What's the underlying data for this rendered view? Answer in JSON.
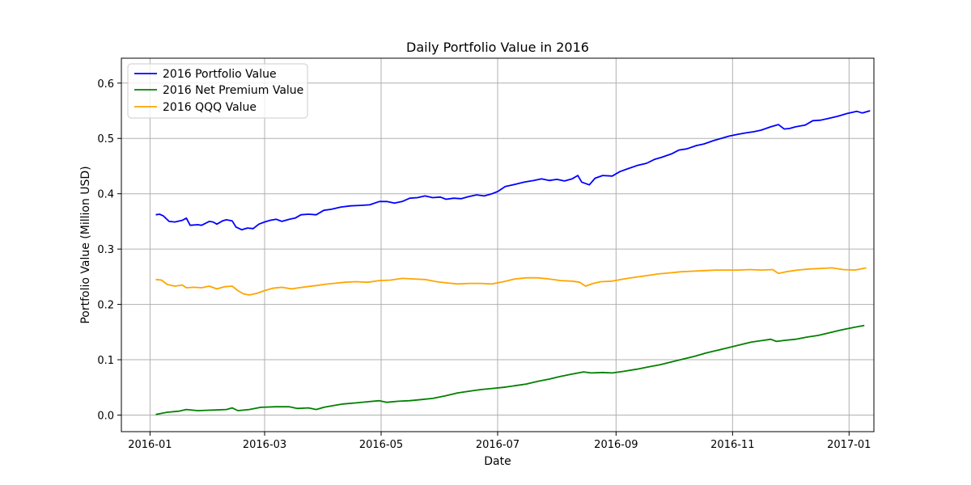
{
  "chart_data": {
    "type": "line",
    "title": "Daily Portfolio Value in 2016",
    "xlabel": "Date",
    "ylabel": "Portfolio Value (Million USD)",
    "xlim": [
      "2015-12-17",
      "2017-01-14"
    ],
    "ylim": [
      -0.03,
      0.645
    ],
    "x_ticks": [
      "2016-01",
      "2016-03",
      "2016-05",
      "2016-07",
      "2016-09",
      "2016-11",
      "2017-01"
    ],
    "y_ticks": [
      "0.0",
      "0.1",
      "0.2",
      "0.3",
      "0.4",
      "0.5",
      "0.6"
    ],
    "grid": true,
    "legend_position": "top-left",
    "series": [
      {
        "name": "2016 Portfolio Value",
        "color": "#0000ff",
        "points": [
          [
            "2016-01-04",
            0.362
          ],
          [
            "2016-01-06",
            0.363
          ],
          [
            "2016-01-08",
            0.36
          ],
          [
            "2016-01-11",
            0.35
          ],
          [
            "2016-01-14",
            0.349
          ],
          [
            "2016-01-18",
            0.352
          ],
          [
            "2016-01-20",
            0.356
          ],
          [
            "2016-01-22",
            0.343
          ],
          [
            "2016-01-26",
            0.344
          ],
          [
            "2016-01-28",
            0.343
          ],
          [
            "2016-02-01",
            0.35
          ],
          [
            "2016-02-03",
            0.349
          ],
          [
            "2016-02-05",
            0.345
          ],
          [
            "2016-02-08",
            0.351
          ],
          [
            "2016-02-10",
            0.353
          ],
          [
            "2016-02-13",
            0.351
          ],
          [
            "2016-02-15",
            0.34
          ],
          [
            "2016-02-18",
            0.335
          ],
          [
            "2016-02-21",
            0.338
          ],
          [
            "2016-02-24",
            0.337
          ],
          [
            "2016-02-27",
            0.345
          ],
          [
            "2016-03-01",
            0.349
          ],
          [
            "2016-03-04",
            0.352
          ],
          [
            "2016-03-07",
            0.354
          ],
          [
            "2016-03-10",
            0.35
          ],
          [
            "2016-03-14",
            0.354
          ],
          [
            "2016-03-17",
            0.356
          ],
          [
            "2016-03-20",
            0.362
          ],
          [
            "2016-03-24",
            0.363
          ],
          [
            "2016-03-28",
            0.362
          ],
          [
            "2016-04-01",
            0.37
          ],
          [
            "2016-04-05",
            0.372
          ],
          [
            "2016-04-10",
            0.376
          ],
          [
            "2016-04-15",
            0.378
          ],
          [
            "2016-04-20",
            0.379
          ],
          [
            "2016-04-25",
            0.38
          ],
          [
            "2016-04-30",
            0.386
          ],
          [
            "2016-05-04",
            0.386
          ],
          [
            "2016-05-08",
            0.383
          ],
          [
            "2016-05-12",
            0.386
          ],
          [
            "2016-05-16",
            0.392
          ],
          [
            "2016-05-20",
            0.393
          ],
          [
            "2016-05-24",
            0.396
          ],
          [
            "2016-05-28",
            0.393
          ],
          [
            "2016-06-01",
            0.394
          ],
          [
            "2016-06-04",
            0.39
          ],
          [
            "2016-06-08",
            0.392
          ],
          [
            "2016-06-12",
            0.391
          ],
          [
            "2016-06-16",
            0.395
          ],
          [
            "2016-06-20",
            0.398
          ],
          [
            "2016-06-24",
            0.396
          ],
          [
            "2016-06-28",
            0.4
          ],
          [
            "2016-07-01",
            0.404
          ],
          [
            "2016-07-05",
            0.413
          ],
          [
            "2016-07-10",
            0.417
          ],
          [
            "2016-07-15",
            0.421
          ],
          [
            "2016-07-20",
            0.424
          ],
          [
            "2016-07-24",
            0.427
          ],
          [
            "2016-07-28",
            0.424
          ],
          [
            "2016-08-01",
            0.426
          ],
          [
            "2016-08-05",
            0.423
          ],
          [
            "2016-08-09",
            0.427
          ],
          [
            "2016-08-12",
            0.433
          ],
          [
            "2016-08-14",
            0.421
          ],
          [
            "2016-08-18",
            0.416
          ],
          [
            "2016-08-21",
            0.428
          ],
          [
            "2016-08-25",
            0.433
          ],
          [
            "2016-08-30",
            0.432
          ],
          [
            "2016-09-03",
            0.44
          ],
          [
            "2016-09-07",
            0.445
          ],
          [
            "2016-09-12",
            0.451
          ],
          [
            "2016-09-17",
            0.455
          ],
          [
            "2016-09-21",
            0.462
          ],
          [
            "2016-09-25",
            0.466
          ],
          [
            "2016-09-30",
            0.472
          ],
          [
            "2016-10-04",
            0.479
          ],
          [
            "2016-10-08",
            0.481
          ],
          [
            "2016-10-13",
            0.487
          ],
          [
            "2016-10-17",
            0.49
          ],
          [
            "2016-10-22",
            0.496
          ],
          [
            "2016-10-26",
            0.5
          ],
          [
            "2016-10-30",
            0.504
          ],
          [
            "2016-11-03",
            0.507
          ],
          [
            "2016-11-08",
            0.51
          ],
          [
            "2016-11-12",
            0.512
          ],
          [
            "2016-11-16",
            0.515
          ],
          [
            "2016-11-21",
            0.521
          ],
          [
            "2016-11-25",
            0.525
          ],
          [
            "2016-11-28",
            0.517
          ],
          [
            "2016-12-01",
            0.518
          ],
          [
            "2016-12-04",
            0.521
          ],
          [
            "2016-12-09",
            0.524
          ],
          [
            "2016-12-13",
            0.532
          ],
          [
            "2016-12-17",
            0.533
          ],
          [
            "2016-12-21",
            0.536
          ],
          [
            "2016-12-26",
            0.54
          ],
          [
            "2016-12-31",
            0.545
          ],
          [
            "2017-01-05",
            0.549
          ],
          [
            "2017-01-08",
            0.546
          ],
          [
            "2017-01-12",
            0.55
          ]
        ]
      },
      {
        "name": "2016 Net Premium Value",
        "color": "#008000",
        "points": [
          [
            "2016-01-04",
            0.001
          ],
          [
            "2016-01-10",
            0.005
          ],
          [
            "2016-01-16",
            0.007
          ],
          [
            "2016-01-20",
            0.01
          ],
          [
            "2016-01-26",
            0.008
          ],
          [
            "2016-02-03",
            0.009
          ],
          [
            "2016-02-10",
            0.01
          ],
          [
            "2016-02-13",
            0.013
          ],
          [
            "2016-02-16",
            0.008
          ],
          [
            "2016-02-22",
            0.01
          ],
          [
            "2016-02-28",
            0.014
          ],
          [
            "2016-03-07",
            0.015
          ],
          [
            "2016-03-14",
            0.015
          ],
          [
            "2016-03-18",
            0.012
          ],
          [
            "2016-03-24",
            0.013
          ],
          [
            "2016-03-28",
            0.01
          ],
          [
            "2016-04-01",
            0.014
          ],
          [
            "2016-04-06",
            0.017
          ],
          [
            "2016-04-11",
            0.02
          ],
          [
            "2016-04-18",
            0.022
          ],
          [
            "2016-04-24",
            0.024
          ],
          [
            "2016-04-30",
            0.026
          ],
          [
            "2016-05-04",
            0.023
          ],
          [
            "2016-05-10",
            0.025
          ],
          [
            "2016-05-16",
            0.026
          ],
          [
            "2016-05-22",
            0.028
          ],
          [
            "2016-05-28",
            0.03
          ],
          [
            "2016-06-04",
            0.035
          ],
          [
            "2016-06-10",
            0.04
          ],
          [
            "2016-06-16",
            0.043
          ],
          [
            "2016-06-22",
            0.046
          ],
          [
            "2016-06-28",
            0.048
          ],
          [
            "2016-07-04",
            0.05
          ],
          [
            "2016-07-10",
            0.053
          ],
          [
            "2016-07-16",
            0.056
          ],
          [
            "2016-07-22",
            0.061
          ],
          [
            "2016-07-28",
            0.065
          ],
          [
            "2016-08-03",
            0.07
          ],
          [
            "2016-08-09",
            0.074
          ],
          [
            "2016-08-15",
            0.078
          ],
          [
            "2016-08-19",
            0.076
          ],
          [
            "2016-08-25",
            0.077
          ],
          [
            "2016-08-30",
            0.076
          ],
          [
            "2016-09-05",
            0.079
          ],
          [
            "2016-09-12",
            0.083
          ],
          [
            "2016-09-18",
            0.087
          ],
          [
            "2016-09-24",
            0.091
          ],
          [
            "2016-09-30",
            0.096
          ],
          [
            "2016-10-06",
            0.101
          ],
          [
            "2016-10-12",
            0.106
          ],
          [
            "2016-10-18",
            0.112
          ],
          [
            "2016-10-24",
            0.117
          ],
          [
            "2016-10-30",
            0.122
          ],
          [
            "2016-11-05",
            0.127
          ],
          [
            "2016-11-11",
            0.132
          ],
          [
            "2016-11-17",
            0.135
          ],
          [
            "2016-11-21",
            0.137
          ],
          [
            "2016-11-24",
            0.133
          ],
          [
            "2016-11-28",
            0.135
          ],
          [
            "2016-12-04",
            0.137
          ],
          [
            "2016-12-10",
            0.141
          ],
          [
            "2016-12-16",
            0.144
          ],
          [
            "2016-12-22",
            0.149
          ],
          [
            "2016-12-28",
            0.154
          ],
          [
            "2017-01-03",
            0.158
          ],
          [
            "2017-01-09",
            0.162
          ]
        ]
      },
      {
        "name": "2016 QQQ Value",
        "color": "#ffa500",
        "points": [
          [
            "2016-01-04",
            0.245
          ],
          [
            "2016-01-07",
            0.244
          ],
          [
            "2016-01-10",
            0.236
          ],
          [
            "2016-01-14",
            0.233
          ],
          [
            "2016-01-18",
            0.235
          ],
          [
            "2016-01-20",
            0.23
          ],
          [
            "2016-01-24",
            0.231
          ],
          [
            "2016-01-28",
            0.23
          ],
          [
            "2016-02-01",
            0.233
          ],
          [
            "2016-02-05",
            0.228
          ],
          [
            "2016-02-09",
            0.232
          ],
          [
            "2016-02-13",
            0.233
          ],
          [
            "2016-02-16",
            0.225
          ],
          [
            "2016-02-19",
            0.219
          ],
          [
            "2016-02-22",
            0.217
          ],
          [
            "2016-02-26",
            0.22
          ],
          [
            "2016-03-01",
            0.225
          ],
          [
            "2016-03-05",
            0.229
          ],
          [
            "2016-03-10",
            0.231
          ],
          [
            "2016-03-15",
            0.228
          ],
          [
            "2016-03-19",
            0.23
          ],
          [
            "2016-03-23",
            0.232
          ],
          [
            "2016-03-28",
            0.234
          ],
          [
            "2016-04-01",
            0.236
          ],
          [
            "2016-04-06",
            0.238
          ],
          [
            "2016-04-12",
            0.24
          ],
          [
            "2016-04-18",
            0.241
          ],
          [
            "2016-04-24",
            0.24
          ],
          [
            "2016-04-30",
            0.243
          ],
          [
            "2016-05-06",
            0.244
          ],
          [
            "2016-05-12",
            0.247
          ],
          [
            "2016-05-18",
            0.246
          ],
          [
            "2016-05-24",
            0.245
          ],
          [
            "2016-05-30",
            0.241
          ],
          [
            "2016-06-04",
            0.239
          ],
          [
            "2016-06-10",
            0.237
          ],
          [
            "2016-06-16",
            0.238
          ],
          [
            "2016-06-22",
            0.238
          ],
          [
            "2016-06-28",
            0.237
          ],
          [
            "2016-07-04",
            0.241
          ],
          [
            "2016-07-10",
            0.246
          ],
          [
            "2016-07-16",
            0.248
          ],
          [
            "2016-07-22",
            0.248
          ],
          [
            "2016-07-28",
            0.246
          ],
          [
            "2016-08-03",
            0.243
          ],
          [
            "2016-08-09",
            0.242
          ],
          [
            "2016-08-13",
            0.24
          ],
          [
            "2016-08-16",
            0.233
          ],
          [
            "2016-08-20",
            0.238
          ],
          [
            "2016-08-24",
            0.241
          ],
          [
            "2016-08-30",
            0.242
          ],
          [
            "2016-09-05",
            0.246
          ],
          [
            "2016-09-11",
            0.249
          ],
          [
            "2016-09-17",
            0.252
          ],
          [
            "2016-09-23",
            0.255
          ],
          [
            "2016-09-29",
            0.257
          ],
          [
            "2016-10-05",
            0.259
          ],
          [
            "2016-10-11",
            0.26
          ],
          [
            "2016-10-17",
            0.261
          ],
          [
            "2016-10-23",
            0.262
          ],
          [
            "2016-10-29",
            0.262
          ],
          [
            "2016-11-04",
            0.262
          ],
          [
            "2016-11-10",
            0.263
          ],
          [
            "2016-11-16",
            0.262
          ],
          [
            "2016-11-22",
            0.263
          ],
          [
            "2016-11-25",
            0.256
          ],
          [
            "2016-11-29",
            0.259
          ],
          [
            "2016-12-05",
            0.262
          ],
          [
            "2016-12-11",
            0.264
          ],
          [
            "2016-12-17",
            0.265
          ],
          [
            "2016-12-23",
            0.266
          ],
          [
            "2016-12-29",
            0.263
          ],
          [
            "2017-01-04",
            0.262
          ],
          [
            "2017-01-10",
            0.266
          ]
        ]
      }
    ]
  }
}
